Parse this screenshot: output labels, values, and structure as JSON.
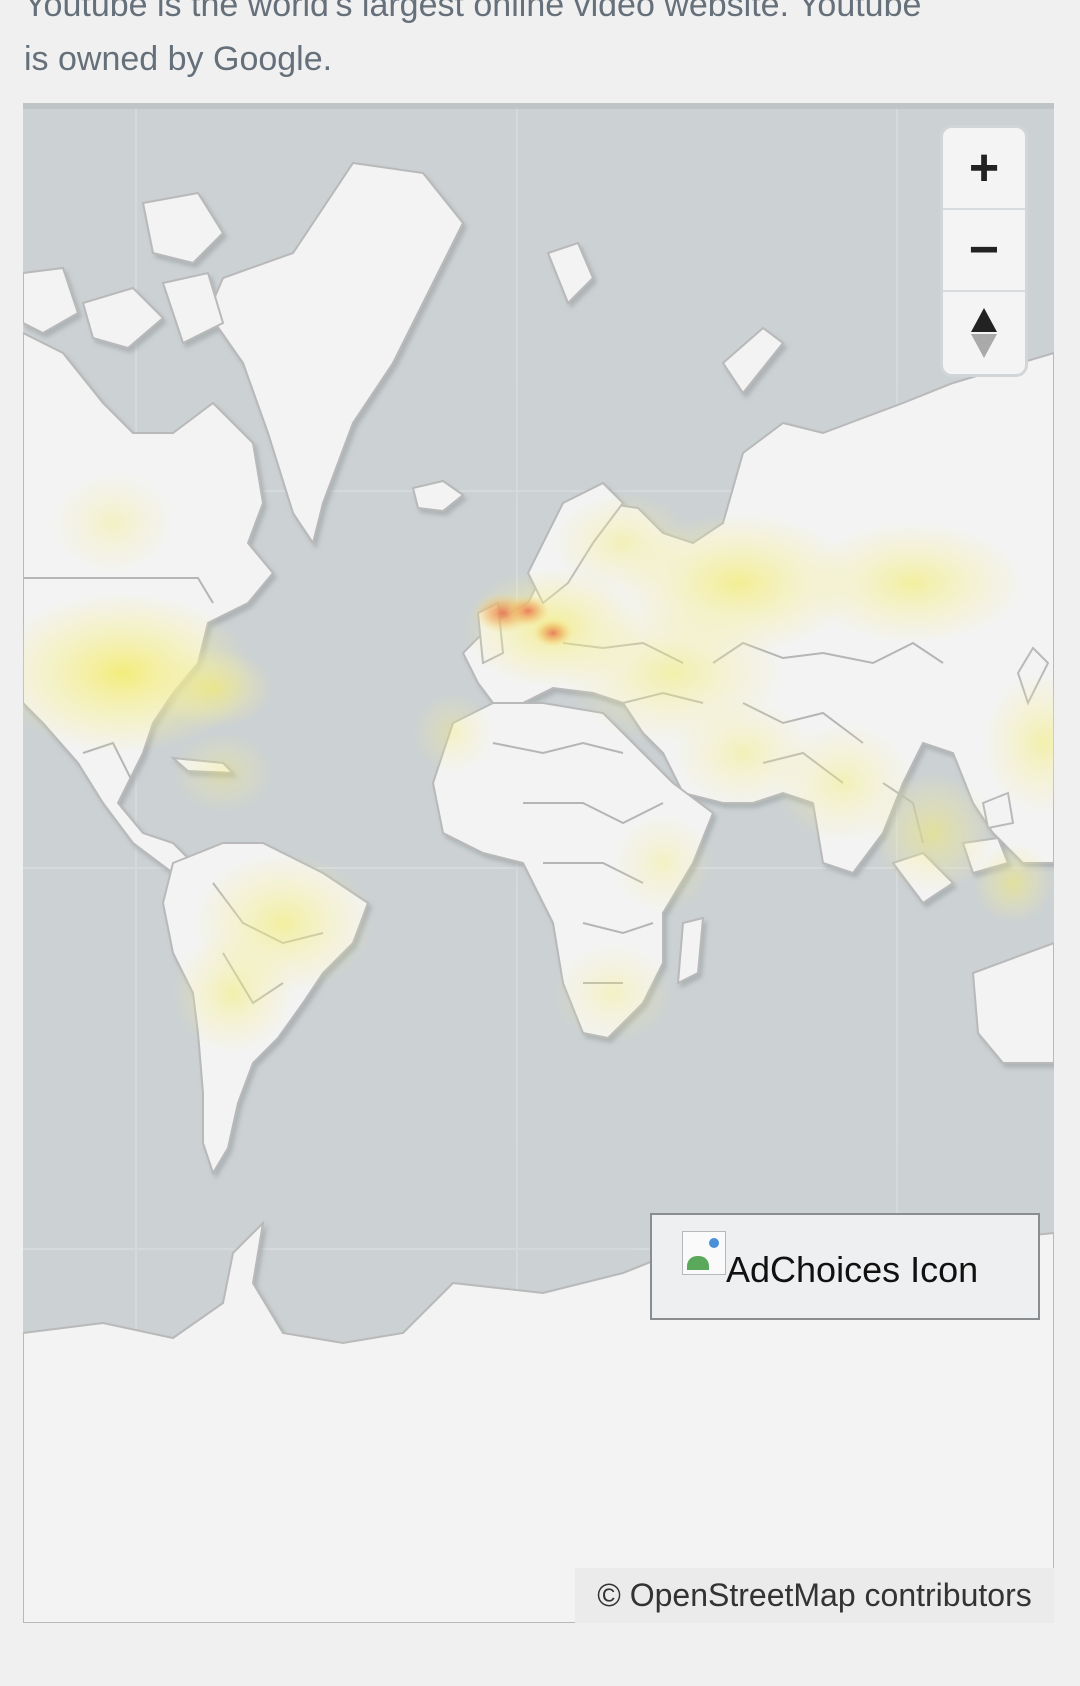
{
  "article": {
    "intro_line1": "Youtube is the world's largest online video website. Youtube",
    "intro_line2": "is owned by Google."
  },
  "map": {
    "zoom_in_label": "+",
    "zoom_out_label": "−",
    "compass_icon": "compass-icon",
    "attribution": "© OpenStreetMap contributors",
    "colors": {
      "water": "#ccd1d3",
      "land": "#f3f3f3",
      "border": "#b9b9b9",
      "heat_low": "#f5ef8a",
      "heat_mid": "#f0c060",
      "heat_high": "#e8805a"
    }
  },
  "ad": {
    "icon_alt": "AdChoices Icon",
    "broken_image_icon": "broken-image-icon"
  }
}
